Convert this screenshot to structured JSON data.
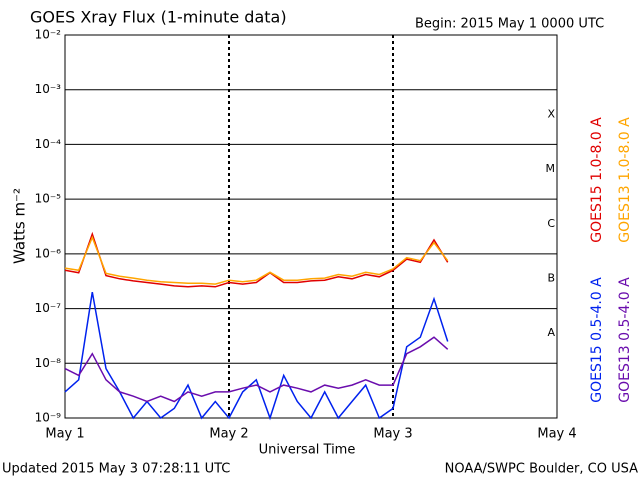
{
  "chart_data": {
    "type": "line",
    "title": "GOES Xray Flux (1-minute data)",
    "subtitle": "Begin:  2015 May 1 0000 UTC",
    "xlabel": "Universal Time",
    "ylabel": "Watts m⁻²",
    "footer_left": "Updated 2015 May  3 07:28:11 UTC",
    "footer_right": "NOAA/SWPC Boulder, CO USA",
    "log_y": true,
    "grid": true,
    "xlim": [
      0,
      72
    ],
    "xticks": [
      {
        "value": 0,
        "label": "May 1"
      },
      {
        "value": 24,
        "label": "May 2"
      },
      {
        "value": 48,
        "label": "May 3"
      },
      {
        "value": 72,
        "label": "May 4"
      }
    ],
    "ylim": [
      1e-09,
      0.01
    ],
    "yticks": [
      {
        "value": 1e-09,
        "label": "10⁻⁹"
      },
      {
        "value": 1e-08,
        "label": "10⁻⁸"
      },
      {
        "value": 1e-07,
        "label": "10⁻⁷"
      },
      {
        "value": 1e-06,
        "label": "10⁻⁶"
      },
      {
        "value": 1e-05,
        "label": "10⁻⁵"
      },
      {
        "value": 0.0001,
        "label": "10⁻⁴"
      },
      {
        "value": 0.001,
        "label": "10⁻³"
      },
      {
        "value": 0.01,
        "label": "10⁻²"
      }
    ],
    "flare_classes": [
      {
        "label": "A",
        "value": 1e-08
      },
      {
        "label": "B",
        "value": 1e-07
      },
      {
        "label": "C",
        "value": 1e-06
      },
      {
        "label": "M",
        "value": 1e-05
      },
      {
        "label": "X",
        "value": 0.0001
      }
    ],
    "x": [
      0,
      2,
      4,
      6,
      8,
      10,
      12,
      14,
      16,
      18,
      20,
      22,
      24,
      26,
      28,
      30,
      32,
      34,
      36,
      38,
      40,
      42,
      44,
      46,
      48,
      50,
      52,
      54,
      56
    ],
    "series": [
      {
        "name": "GOES15 1.0-8.0 A",
        "color": "#e00000",
        "values": [
          5e-07,
          4.5e-07,
          2.3e-06,
          4e-07,
          3.5e-07,
          3.2e-07,
          3e-07,
          2.8e-07,
          2.6e-07,
          2.5e-07,
          2.6e-07,
          2.5e-07,
          3e-07,
          2.8e-07,
          3e-07,
          4.5e-07,
          3e-07,
          3e-07,
          3.2e-07,
          3.3e-07,
          3.8e-07,
          3.5e-07,
          4.2e-07,
          3.8e-07,
          5e-07,
          8e-07,
          7e-07,
          1.8e-06,
          7e-07
        ]
      },
      {
        "name": "GOES13 1.0-8.0 A",
        "color": "#ffa500",
        "values": [
          5.5e-07,
          5e-07,
          2e-06,
          4.4e-07,
          3.9e-07,
          3.6e-07,
          3.3e-07,
          3.1e-07,
          3e-07,
          2.9e-07,
          2.9e-07,
          2.8e-07,
          3.3e-07,
          3.1e-07,
          3.3e-07,
          4.6e-07,
          3.3e-07,
          3.3e-07,
          3.5e-07,
          3.6e-07,
          4.2e-07,
          3.9e-07,
          4.6e-07,
          4.2e-07,
          5.3e-07,
          8.5e-07,
          7.5e-07,
          1.6e-06,
          7.5e-07
        ]
      },
      {
        "name": "GOES15 0.5-4.0 A",
        "color": "#0022ee",
        "values": [
          3e-09,
          5e-09,
          2e-07,
          8e-09,
          3e-09,
          1e-09,
          2e-09,
          1e-09,
          1.5e-09,
          4e-09,
          1e-09,
          2e-09,
          1e-09,
          3e-09,
          5e-09,
          1e-09,
          6e-09,
          2e-09,
          1e-09,
          3e-09,
          1e-09,
          2e-09,
          4e-09,
          1e-09,
          1.5e-09,
          2e-08,
          3e-08,
          1.5e-07,
          2.5e-08
        ]
      },
      {
        "name": "GOES13 0.5-4.0 A",
        "color": "#6a0dad",
        "values": [
          8e-09,
          6e-09,
          1.5e-08,
          5e-09,
          3e-09,
          2.5e-09,
          2e-09,
          2.5e-09,
          2e-09,
          3e-09,
          2.5e-09,
          3e-09,
          3e-09,
          3.5e-09,
          4e-09,
          3e-09,
          4e-09,
          3.5e-09,
          3e-09,
          4e-09,
          3.5e-09,
          4e-09,
          5e-09,
          4e-09,
          4e-09,
          1.5e-08,
          2e-08,
          3e-08,
          1.8e-08
        ]
      }
    ]
  }
}
